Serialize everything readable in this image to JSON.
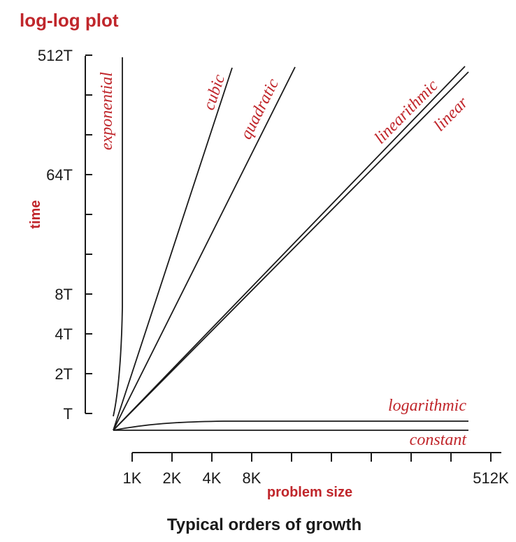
{
  "chart_data": {
    "type": "line",
    "title": "log-log plot",
    "ylabel": "time",
    "xlabel": "problem size",
    "caption": "Typical orders of growth",
    "x_scale": "log2",
    "y_scale": "log2",
    "y_ticks": [
      "T",
      "2T",
      "4T",
      "8T",
      "",
      "",
      "64T",
      "",
      "",
      "512T"
    ],
    "x_ticks": [
      "1K",
      "2K",
      "4K",
      "8K",
      "",
      "",
      "",
      "",
      "",
      "512K"
    ],
    "xlim": [
      1,
      512
    ],
    "ylim": [
      1,
      512
    ],
    "series": [
      {
        "name": "constant",
        "label": "constant"
      },
      {
        "name": "logarithmic",
        "label": "logarithmic"
      },
      {
        "name": "linear",
        "label": "linear"
      },
      {
        "name": "linearithmic",
        "label": "linearithmic"
      },
      {
        "name": "quadratic",
        "label": "quadratic"
      },
      {
        "name": "cubic",
        "label": "cubic"
      },
      {
        "name": "exponential",
        "label": "exponential"
      }
    ]
  }
}
